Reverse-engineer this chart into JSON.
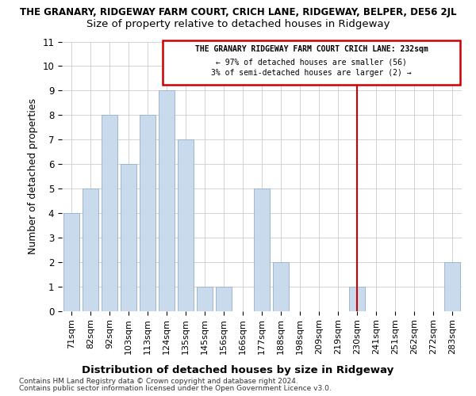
{
  "title": "THE GRANARY, RIDGEWAY FARM COURT, CRICH LANE, RIDGEWAY, BELPER, DE56 2JL",
  "subtitle": "Size of property relative to detached houses in Ridgeway",
  "xlabel": "Distribution of detached houses by size in Ridgeway",
  "ylabel": "Number of detached properties",
  "categories": [
    "71sqm",
    "82sqm",
    "92sqm",
    "103sqm",
    "113sqm",
    "124sqm",
    "135sqm",
    "145sqm",
    "156sqm",
    "166sqm",
    "177sqm",
    "188sqm",
    "198sqm",
    "209sqm",
    "219sqm",
    "230sqm",
    "241sqm",
    "251sqm",
    "262sqm",
    "272sqm",
    "283sqm"
  ],
  "values": [
    4,
    5,
    8,
    6,
    8,
    9,
    7,
    1,
    1,
    0,
    5,
    2,
    0,
    0,
    0,
    1,
    0,
    0,
    0,
    0,
    2
  ],
  "bar_color": "#c8daeb",
  "bar_edge_color": "#9ab8d0",
  "vline_x_index": 15,
  "vline_color": "#cc0000",
  "annotation_title": "THE GRANARY RIDGEWAY FARM COURT CRICH LANE: 232sqm",
  "annotation_line1": "← 97% of detached houses are smaller (56)",
  "annotation_line2": "3% of semi-detached houses are larger (2) →",
  "annotation_box_color": "#cc0000",
  "ylim": [
    0,
    11
  ],
  "yticks": [
    0,
    1,
    2,
    3,
    4,
    5,
    6,
    7,
    8,
    9,
    10,
    11
  ],
  "footer1": "Contains HM Land Registry data © Crown copyright and database right 2024.",
  "footer2": "Contains public sector information licensed under the Open Government Licence v3.0.",
  "bg_color": "#ffffff",
  "plot_bg_color": "#ffffff"
}
